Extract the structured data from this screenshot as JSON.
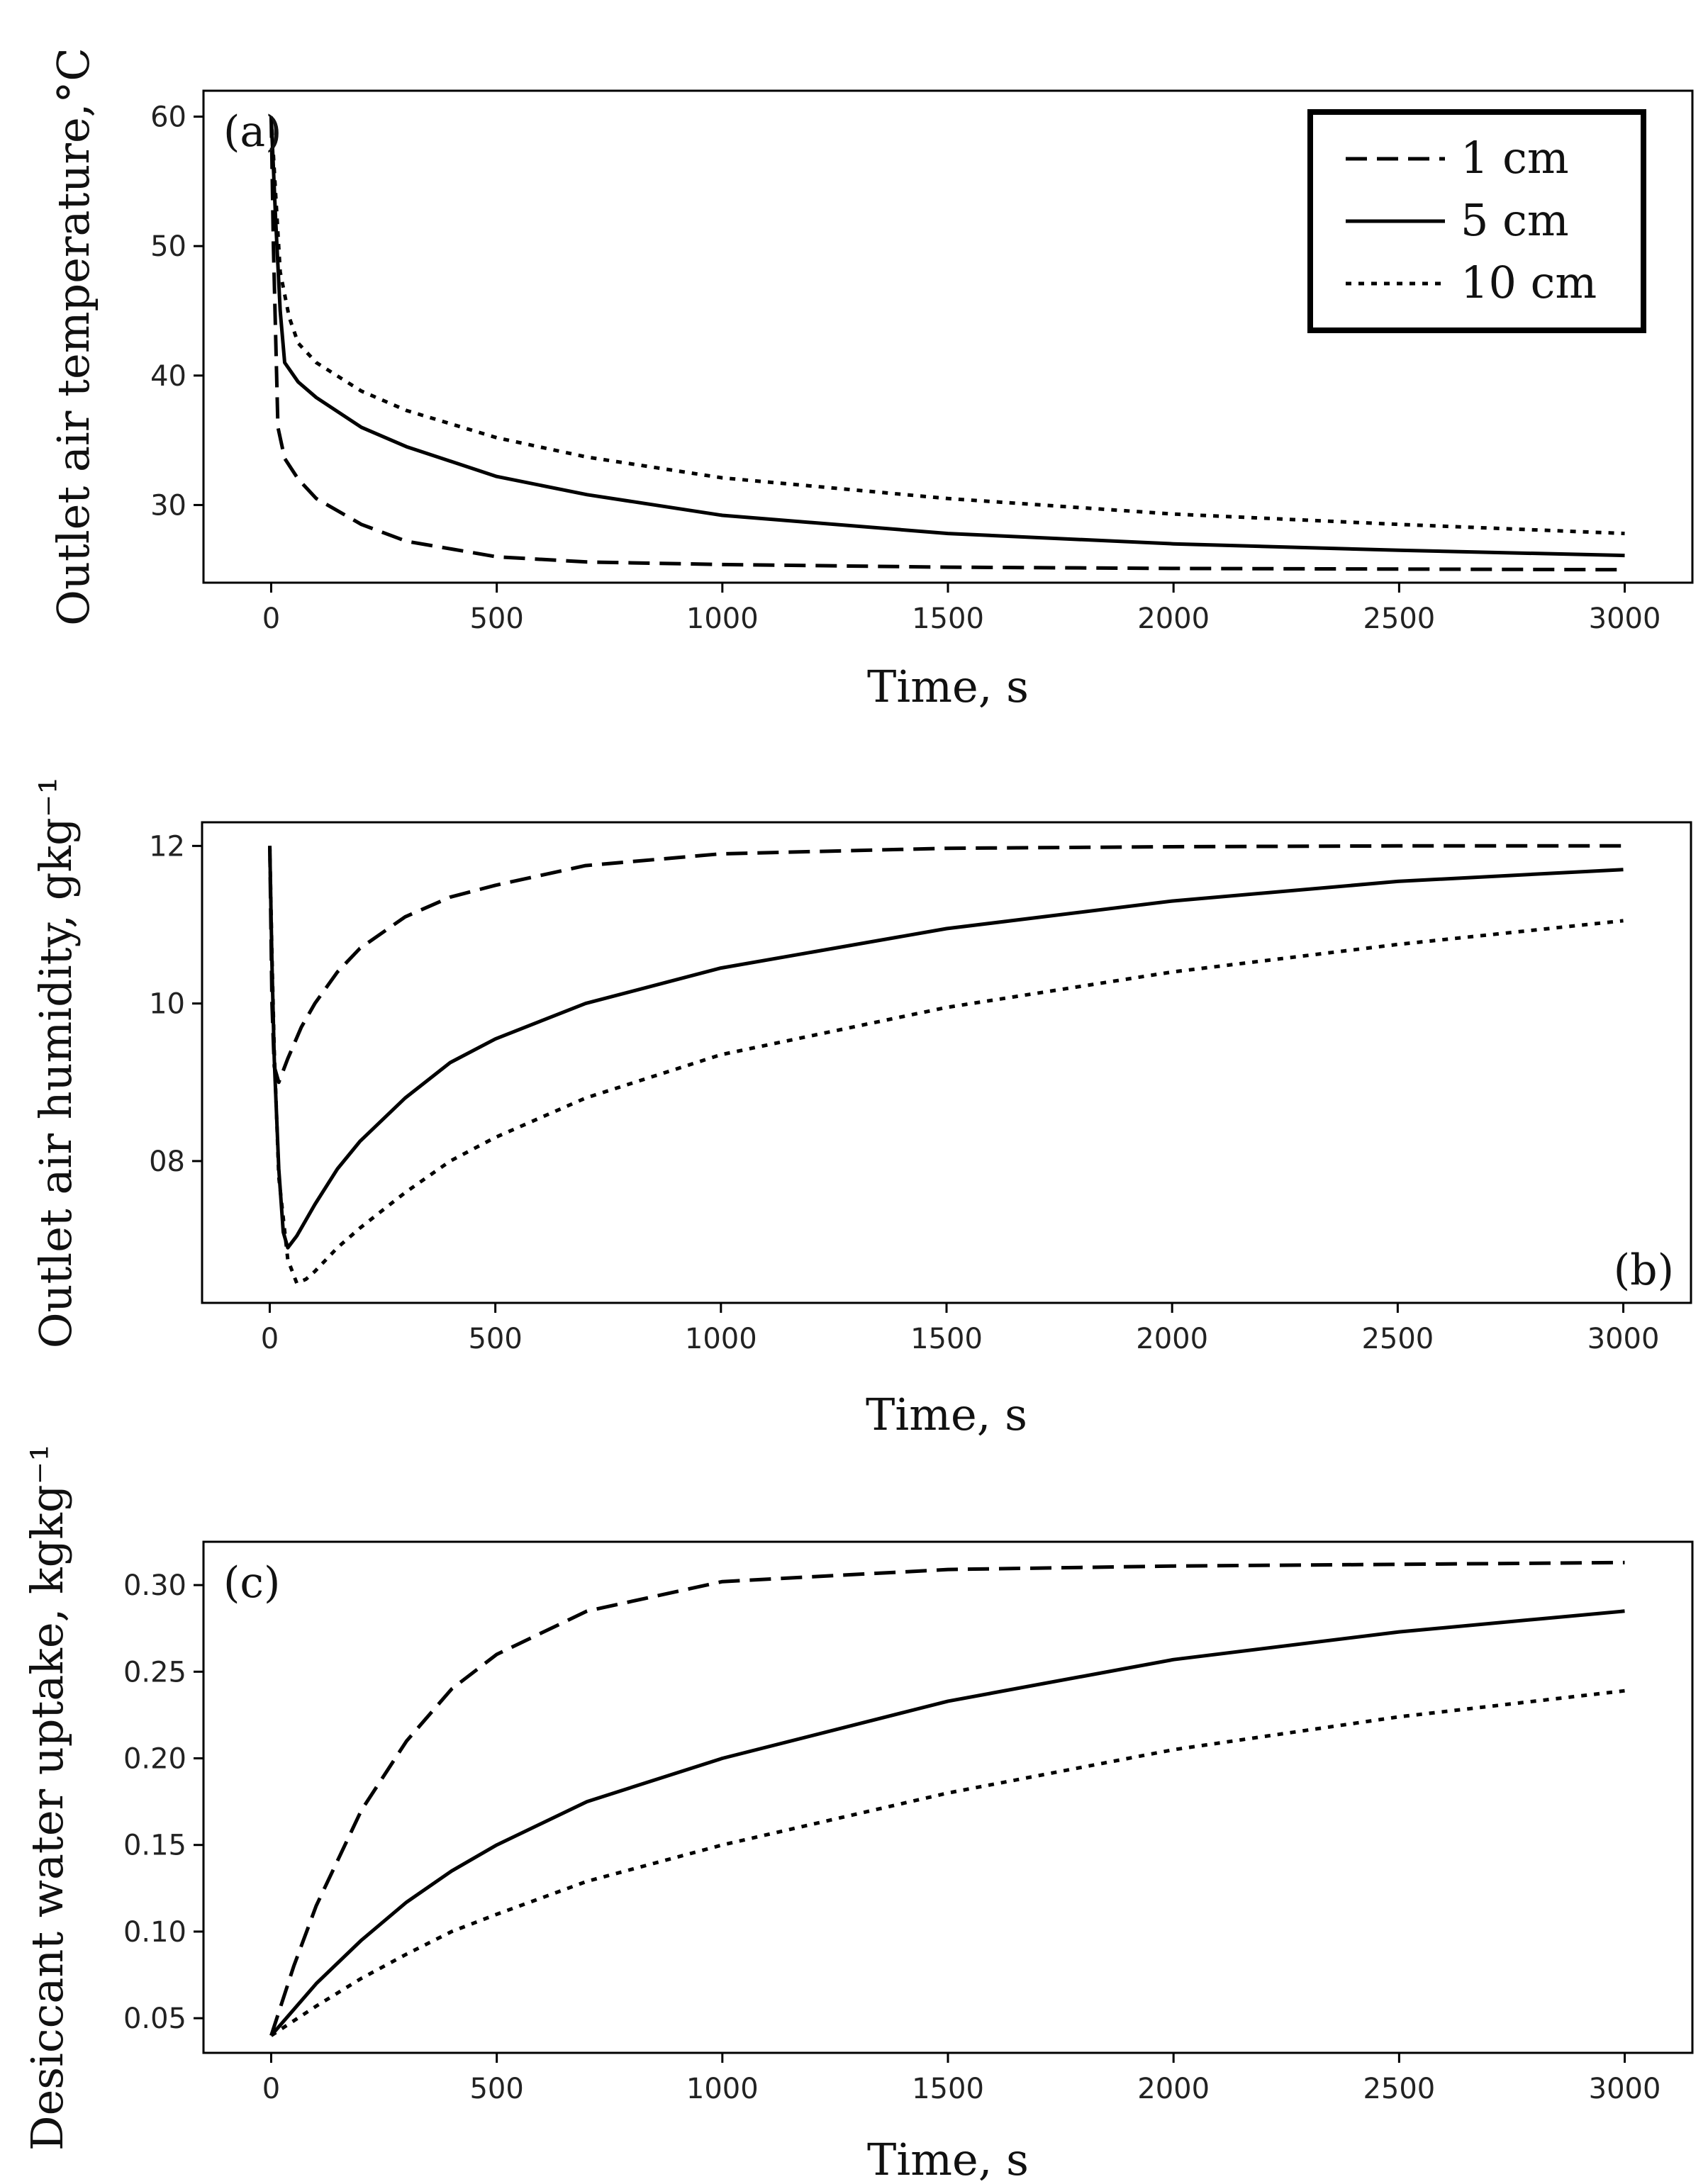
{
  "chart_data": [
    {
      "type": "line",
      "panel_label": "(a)",
      "xlabel": "Time, s",
      "ylabel": "Outlet air temperature,°C",
      "xlim": [
        -150,
        3150
      ],
      "ylim": [
        24,
        62
      ],
      "xticks": [
        0,
        500,
        1000,
        1500,
        2000,
        2500,
        3000
      ],
      "xtick_labels": [
        "0",
        "500",
        "1000",
        "1500",
        "2000",
        "2500",
        "3000"
      ],
      "yticks": [
        30,
        40,
        50,
        60
      ],
      "ytick_labels": [
        "30",
        "40",
        "50",
        "60"
      ],
      "legend": {
        "position": "top-right",
        "entries": [
          "1 cm",
          "5 cm",
          "10 cm"
        ]
      },
      "series": [
        {
          "name": "1 cm",
          "style": "dashed",
          "x": [
            0,
            5,
            15,
            30,
            60,
            100,
            200,
            300,
            500,
            700,
            1000,
            1500,
            2000,
            2500,
            3000
          ],
          "y": [
            60,
            50,
            36,
            33.6,
            32,
            30.5,
            28.5,
            27.2,
            26,
            25.6,
            25.4,
            25.2,
            25.1,
            25.05,
            25
          ]
        },
        {
          "name": "5 cm",
          "style": "solid",
          "x": [
            0,
            10,
            20,
            30,
            60,
            100,
            200,
            300,
            500,
            700,
            1000,
            1500,
            2000,
            2500,
            3000
          ],
          "y": [
            60,
            52,
            45,
            41,
            39.5,
            38.3,
            36,
            34.5,
            32.2,
            30.8,
            29.2,
            27.8,
            27,
            26.5,
            26.1
          ]
        },
        {
          "name": "10 cm",
          "style": "dotted",
          "x": [
            0,
            10,
            20,
            40,
            60,
            100,
            200,
            300,
            500,
            700,
            1000,
            1500,
            2000,
            2500,
            3000
          ],
          "y": [
            60,
            54,
            48,
            44.5,
            42.5,
            41,
            38.8,
            37.3,
            35.2,
            33.7,
            32.1,
            30.5,
            29.3,
            28.5,
            27.8
          ]
        }
      ]
    },
    {
      "type": "line",
      "panel_label": "(b)",
      "xlabel": "Time, s",
      "ylabel": "Outlet air humidity, gkg⁻¹",
      "xlim": [
        -150,
        3150
      ],
      "ylim": [
        6.2,
        12.3
      ],
      "xticks": [
        0,
        500,
        1000,
        1500,
        2000,
        2500,
        3000
      ],
      "xtick_labels": [
        "0",
        "500",
        "1000",
        "1500",
        "2000",
        "2500",
        "3000"
      ],
      "yticks": [
        8,
        10,
        12
      ],
      "ytick_labels": [
        "08",
        "10",
        "12"
      ],
      "series": [
        {
          "name": "1 cm",
          "style": "dashed",
          "x": [
            0,
            5,
            10,
            20,
            40,
            70,
            100,
            150,
            200,
            300,
            400,
            500,
            700,
            1000,
            1500,
            2000,
            2500,
            3000
          ],
          "y": [
            12,
            10,
            9.2,
            9.0,
            9.3,
            9.7,
            10.0,
            10.4,
            10.7,
            11.1,
            11.35,
            11.5,
            11.75,
            11.9,
            11.97,
            11.99,
            12.0,
            12.0
          ]
        },
        {
          "name": "5 cm",
          "style": "solid",
          "x": [
            0,
            5,
            10,
            20,
            30,
            40,
            60,
            80,
            100,
            150,
            200,
            300,
            400,
            500,
            700,
            1000,
            1500,
            2000,
            2500,
            3000
          ],
          "y": [
            12,
            10.5,
            9.3,
            7.9,
            7.1,
            6.9,
            7.05,
            7.25,
            7.45,
            7.9,
            8.25,
            8.8,
            9.25,
            9.55,
            10.0,
            10.45,
            10.95,
            11.3,
            11.55,
            11.7
          ]
        },
        {
          "name": "10 cm",
          "style": "dotted",
          "x": [
            0,
            5,
            10,
            20,
            40,
            60,
            80,
            100,
            150,
            200,
            300,
            400,
            500,
            700,
            1000,
            1500,
            2000,
            2500,
            3000
          ],
          "y": [
            12,
            10.6,
            9.4,
            7.8,
            6.75,
            6.45,
            6.5,
            6.6,
            6.9,
            7.15,
            7.6,
            8.0,
            8.3,
            8.8,
            9.35,
            9.95,
            10.4,
            10.75,
            11.05
          ]
        }
      ]
    },
    {
      "type": "line",
      "panel_label": "(c)",
      "xlabel": "Time, s",
      "ylabel": "Desiccant water uptake, kgkg⁻¹",
      "xlim": [
        -150,
        3150
      ],
      "ylim": [
        0.03,
        0.325
      ],
      "xticks": [
        0,
        500,
        1000,
        1500,
        2000,
        2500,
        3000
      ],
      "xtick_labels": [
        "0",
        "500",
        "1000",
        "1500",
        "2000",
        "2500",
        "3000"
      ],
      "yticks": [
        0.05,
        0.1,
        0.15,
        0.2,
        0.25,
        0.3
      ],
      "ytick_labels": [
        "0.05",
        "0.10",
        "0.15",
        "0.20",
        "0.25",
        "0.30"
      ],
      "series": [
        {
          "name": "1 cm",
          "style": "dashed",
          "x": [
            0,
            50,
            100,
            200,
            300,
            400,
            500,
            700,
            1000,
            1500,
            2000,
            2500,
            3000
          ],
          "y": [
            0.04,
            0.08,
            0.115,
            0.17,
            0.21,
            0.24,
            0.26,
            0.285,
            0.302,
            0.309,
            0.311,
            0.312,
            0.313
          ]
        },
        {
          "name": "5 cm",
          "style": "solid",
          "x": [
            0,
            100,
            200,
            300,
            400,
            500,
            700,
            1000,
            1500,
            2000,
            2500,
            3000
          ],
          "y": [
            0.04,
            0.07,
            0.095,
            0.117,
            0.135,
            0.15,
            0.175,
            0.2,
            0.233,
            0.257,
            0.273,
            0.285
          ]
        },
        {
          "name": "10 cm",
          "style": "dotted",
          "x": [
            0,
            100,
            200,
            300,
            400,
            500,
            700,
            1000,
            1500,
            2000,
            2500,
            3000
          ],
          "y": [
            0.04,
            0.057,
            0.073,
            0.087,
            0.1,
            0.11,
            0.129,
            0.15,
            0.18,
            0.205,
            0.224,
            0.239
          ]
        }
      ]
    }
  ]
}
